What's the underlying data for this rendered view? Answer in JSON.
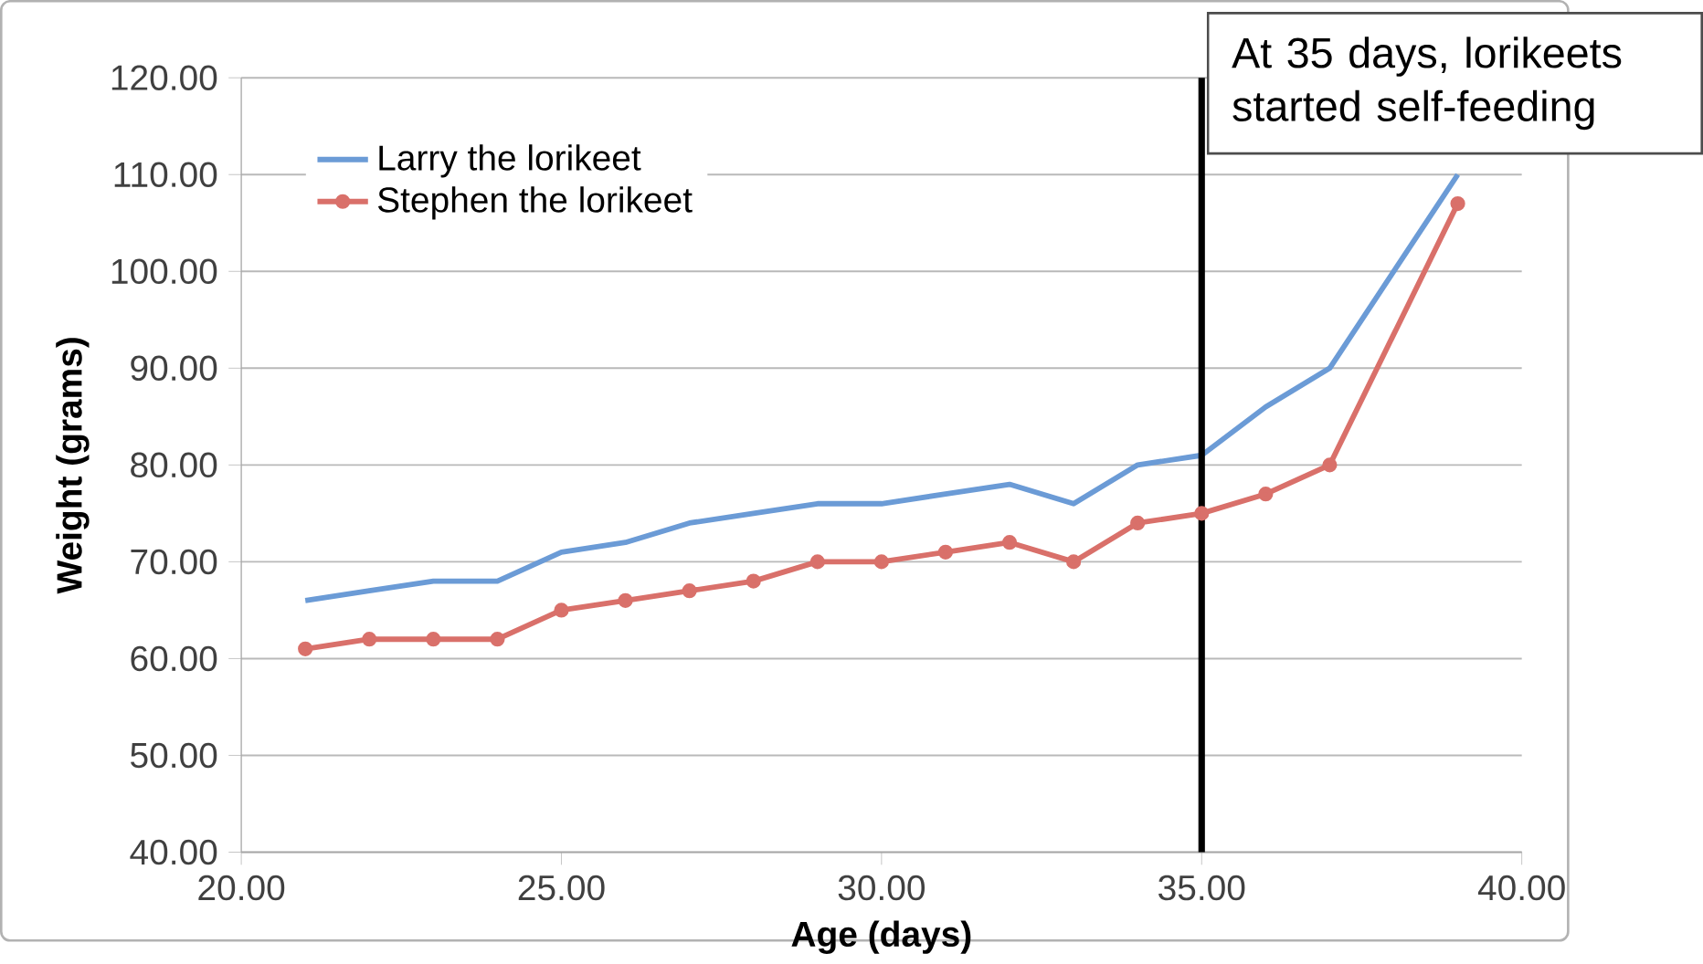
{
  "chart_data": {
    "type": "line",
    "xlabel": "Age (days)",
    "ylabel": "Weight (grams)",
    "xlim": [
      20,
      40
    ],
    "ylim": [
      40,
      120
    ],
    "xticks": [
      {
        "value": 20,
        "label": "20.00"
      },
      {
        "value": 25,
        "label": "25.00"
      },
      {
        "value": 30,
        "label": "30.00"
      },
      {
        "value": 35,
        "label": "35.00"
      },
      {
        "value": 40,
        "label": "40.00"
      }
    ],
    "yticks": [
      {
        "value": 40,
        "label": "40.00"
      },
      {
        "value": 50,
        "label": "50.00"
      },
      {
        "value": 60,
        "label": "60.00"
      },
      {
        "value": 70,
        "label": "70.00"
      },
      {
        "value": 80,
        "label": "80.00"
      },
      {
        "value": 90,
        "label": "90.00"
      },
      {
        "value": 100,
        "label": "100.00"
      },
      {
        "value": 110,
        "label": "110.00"
      },
      {
        "value": 120,
        "label": "120.00"
      }
    ],
    "grid": "y",
    "legend": "top left",
    "series": [
      {
        "name": "Larry the lorikeet",
        "color": "#6b9bd6",
        "marker": "none",
        "x": [
          21,
          22,
          23,
          24,
          25,
          26,
          27,
          28,
          29,
          30,
          31,
          32,
          33,
          34,
          35,
          36,
          37,
          39
        ],
        "values": [
          66,
          67,
          68,
          68,
          71,
          72,
          74,
          75,
          76,
          76,
          77,
          78,
          76,
          80,
          81,
          86,
          90,
          110
        ]
      },
      {
        "name": "Stephen the lorikeet",
        "color": "#d9706a",
        "marker": "circle",
        "x": [
          21,
          22,
          23,
          24,
          25,
          26,
          27,
          28,
          29,
          30,
          31,
          32,
          33,
          34,
          35,
          36,
          37,
          39
        ],
        "values": [
          61,
          62,
          62,
          62,
          65,
          66,
          67,
          68,
          70,
          70,
          71,
          72,
          70,
          74,
          75,
          77,
          80,
          107
        ]
      }
    ],
    "ref_lines": [
      {
        "axis": "x",
        "value": 35,
        "color": "#000000"
      }
    ],
    "annotations": [
      "At 35 days, lorikeets started self-feeding"
    ]
  }
}
